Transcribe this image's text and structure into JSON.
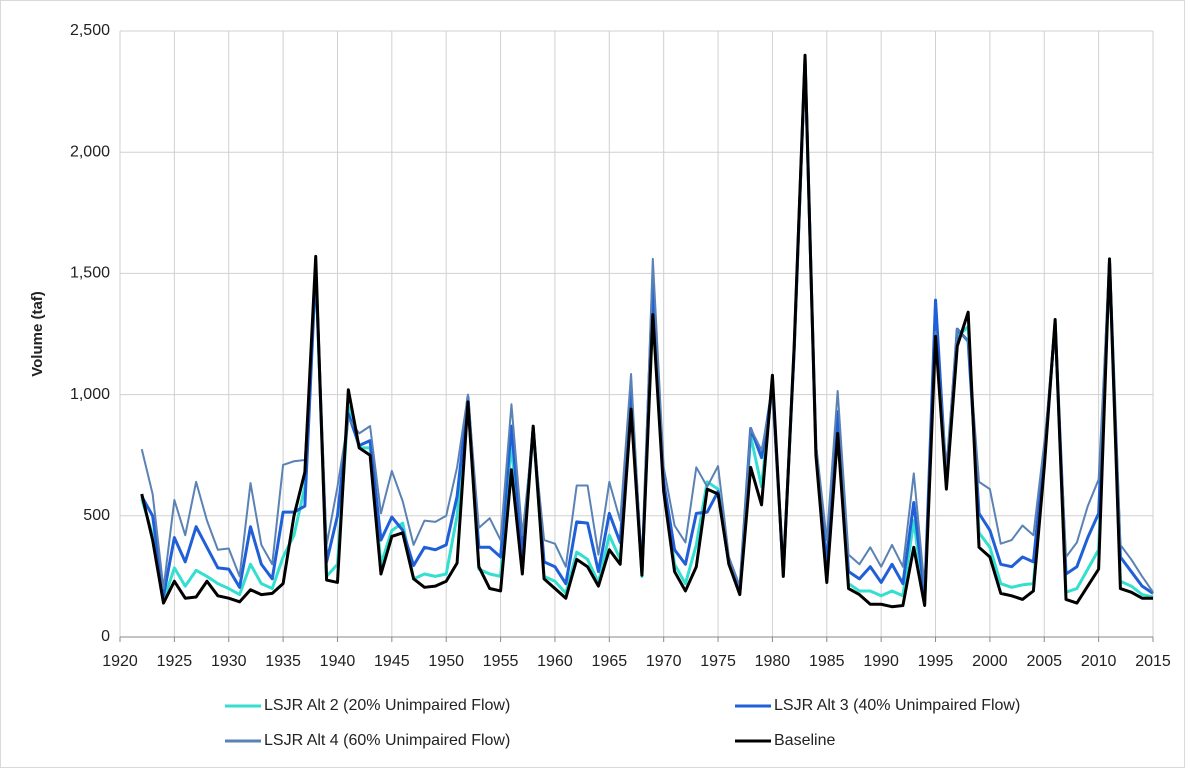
{
  "chart_data": {
    "type": "line",
    "y_label": "Volume (taf)",
    "x": [
      1922,
      1923,
      1924,
      1925,
      1926,
      1927,
      1928,
      1929,
      1930,
      1931,
      1932,
      1933,
      1934,
      1935,
      1936,
      1937,
      1938,
      1939,
      1940,
      1941,
      1942,
      1943,
      1944,
      1945,
      1946,
      1947,
      1948,
      1949,
      1950,
      1951,
      1952,
      1953,
      1954,
      1955,
      1956,
      1957,
      1958,
      1959,
      1960,
      1961,
      1962,
      1963,
      1964,
      1965,
      1966,
      1967,
      1968,
      1969,
      1970,
      1971,
      1972,
      1973,
      1974,
      1975,
      1976,
      1977,
      1978,
      1979,
      1980,
      1981,
      1982,
      1983,
      1984,
      1985,
      1986,
      1987,
      1988,
      1989,
      1990,
      1991,
      1992,
      1993,
      1994,
      1995,
      1996,
      1997,
      1998,
      1999,
      2000,
      2001,
      2002,
      2003,
      2004,
      2005,
      2006,
      2007,
      2008,
      2009,
      2010,
      2011,
      2012,
      2013,
      2014,
      2015
    ],
    "series": [
      {
        "name": "LSJR Alt 2 (20% Unimpaired Flow)",
        "color": "#33dfd0",
        "values": [
          570,
          420,
          150,
          285,
          210,
          275,
          250,
          220,
          200,
          175,
          300,
          220,
          200,
          330,
          420,
          620,
          1540,
          250,
          300,
          950,
          780,
          780,
          300,
          440,
          470,
          240,
          260,
          250,
          260,
          500,
          980,
          280,
          260,
          250,
          800,
          280,
          860,
          250,
          230,
          180,
          350,
          320,
          225,
          420,
          320,
          980,
          250,
          1400,
          620,
          300,
          220,
          380,
          640,
          610,
          300,
          180,
          830,
          620,
          1050,
          255,
          1190,
          2390,
          760,
          260,
          880,
          220,
          190,
          190,
          170,
          190,
          170,
          480,
          140,
          1300,
          620,
          1240,
          1280,
          430,
          370,
          220,
          205,
          215,
          220,
          720,
          1300,
          185,
          200,
          280,
          360,
          1550,
          230,
          210,
          175,
          165
        ]
      },
      {
        "name": "LSJR Alt 3 (40% Unimpaired Flow)",
        "color": "#1f5fd8",
        "values": [
          580,
          500,
          170,
          410,
          310,
          455,
          370,
          285,
          280,
          205,
          455,
          300,
          240,
          515,
          515,
          540,
          1520,
          310,
          500,
          920,
          790,
          810,
          400,
          495,
          440,
          295,
          370,
          360,
          380,
          580,
          990,
          370,
          370,
          330,
          870,
          340,
          860,
          310,
          290,
          220,
          475,
          470,
          270,
          510,
          390,
          1010,
          265,
          1470,
          640,
          360,
          300,
          510,
          515,
          600,
          300,
          190,
          860,
          740,
          1030,
          265,
          1180,
          2380,
          780,
          300,
          930,
          270,
          240,
          290,
          225,
          300,
          220,
          555,
          165,
          1390,
          640,
          1270,
          1220,
          510,
          440,
          300,
          290,
          330,
          310,
          750,
          1290,
          260,
          290,
          410,
          510,
          1550,
          330,
          270,
          210,
          180
        ]
      },
      {
        "name": "LSJR Alt 4 (60% Unimpaired Flow)",
        "color": "#5a82b4",
        "values": [
          775,
          590,
          200,
          565,
          420,
          640,
          480,
          360,
          365,
          250,
          635,
          380,
          300,
          710,
          725,
          730,
          1500,
          380,
          620,
          900,
          840,
          870,
          510,
          685,
          560,
          380,
          480,
          475,
          500,
          700,
          1000,
          450,
          490,
          400,
          960,
          420,
          840,
          400,
          385,
          290,
          625,
          625,
          340,
          640,
          480,
          1085,
          270,
          1560,
          700,
          460,
          390,
          700,
          620,
          705,
          330,
          210,
          860,
          770,
          1000,
          280,
          1150,
          2330,
          800,
          400,
          1015,
          340,
          300,
          370,
          290,
          380,
          290,
          675,
          200,
          1260,
          700,
          1270,
          1220,
          640,
          610,
          385,
          400,
          460,
          420,
          800,
          1250,
          330,
          390,
          540,
          650,
          1550,
          380,
          320,
          250,
          185
        ]
      },
      {
        "name": "Baseline",
        "color": "#000000",
        "values": [
          590,
          400,
          140,
          230,
          160,
          165,
          230,
          170,
          160,
          145,
          195,
          175,
          180,
          220,
          500,
          680,
          1570,
          235,
          225,
          1020,
          780,
          750,
          260,
          415,
          430,
          240,
          205,
          210,
          230,
          305,
          970,
          290,
          200,
          190,
          690,
          260,
          870,
          240,
          200,
          160,
          320,
          290,
          210,
          360,
          300,
          940,
          255,
          1330,
          600,
          270,
          190,
          290,
          610,
          590,
          300,
          175,
          700,
          545,
          1080,
          250,
          1200,
          2400,
          750,
          225,
          840,
          200,
          175,
          135,
          135,
          125,
          130,
          370,
          130,
          1240,
          610,
          1200,
          1340,
          370,
          330,
          180,
          170,
          155,
          190,
          700,
          1310,
          155,
          140,
          210,
          280,
          1560,
          200,
          185,
          160,
          160
        ]
      }
    ],
    "xlim": [
      1920,
      2015
    ],
    "xticks": [
      1920,
      1925,
      1930,
      1935,
      1940,
      1945,
      1950,
      1955,
      1960,
      1965,
      1970,
      1975,
      1980,
      1985,
      1990,
      1995,
      2000,
      2005,
      2010,
      2015
    ],
    "ylim": [
      0,
      2500
    ],
    "yticks": [
      0,
      500,
      {
        "value": 1000,
        "label": "1,000"
      },
      {
        "value": 1500,
        "label": "1,500"
      },
      {
        "value": 2000,
        "label": "2,000"
      },
      {
        "value": 2500,
        "label": "2,500"
      }
    ],
    "grid": true,
    "legend": "bottom"
  }
}
